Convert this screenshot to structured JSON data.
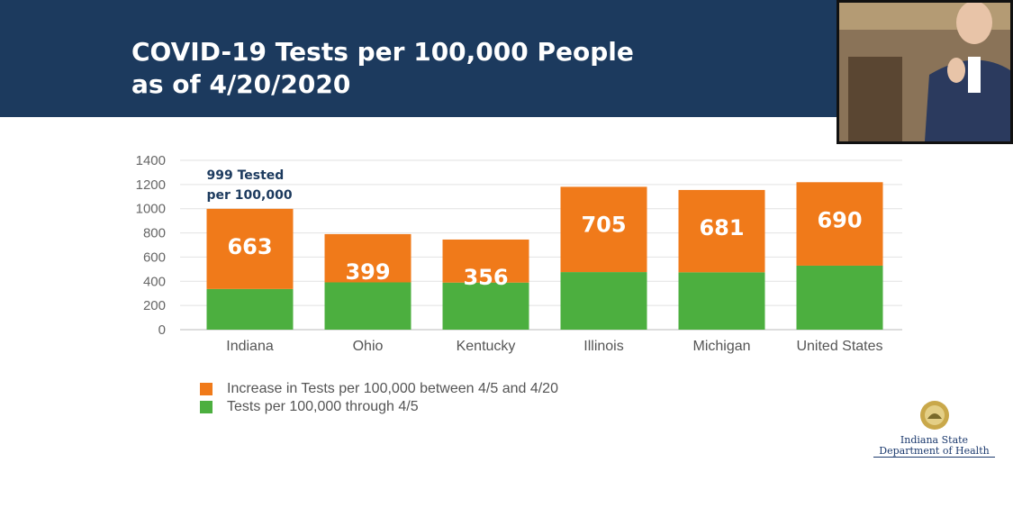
{
  "header": {
    "title_line1": "COVID-19 Tests per 100,000 People",
    "title_line2": "as of 4/20/2020"
  },
  "colors": {
    "banner": "#1c3a5e",
    "increase": "#f07a1a",
    "base": "#4caf3f"
  },
  "chart_data": {
    "type": "bar",
    "stacked": true,
    "categories": [
      "Indiana",
      "Ohio",
      "Kentucky",
      "Illinois",
      "Michigan",
      "United States"
    ],
    "series": [
      {
        "name": "Tests per 100,000 through 4/5",
        "values": [
          336,
          391,
          389,
          476,
          474,
          529
        ],
        "color": "#4caf3f"
      },
      {
        "name": "Increase in Tests per 100,000 between 4/5 and 4/20",
        "values": [
          663,
          399,
          356,
          705,
          681,
          690
        ],
        "color": "#f07a1a"
      }
    ],
    "yticks": [
      0,
      200,
      400,
      600,
      800,
      1000,
      1200,
      1400
    ],
    "ylim": [
      0,
      1400
    ],
    "annotation": {
      "category": "Indiana",
      "text_line1": "999 Tested",
      "text_line2": "per 100,000"
    },
    "grid": true,
    "legend_position": "bottom-left"
  },
  "logo": {
    "line1": "Indiana State",
    "line2": "Department of Health"
  }
}
